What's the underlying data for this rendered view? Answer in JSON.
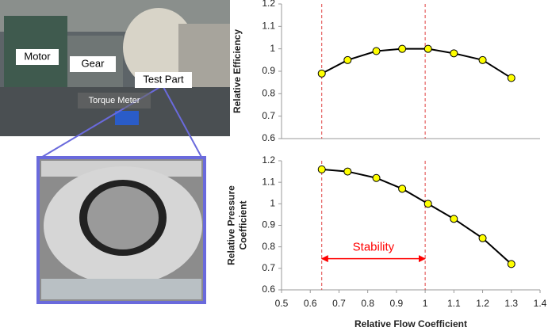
{
  "photo_labels": [
    "Motor",
    "Gear",
    "Test Part",
    "Torque Meter"
  ],
  "chart_data": [
    {
      "type": "line",
      "ylabel": [
        "Relative  Efficiency"
      ],
      "x": [
        0.64,
        0.73,
        0.83,
        0.92,
        1.01,
        1.1,
        1.2,
        1.3
      ],
      "series": [
        {
          "name": "Relative Efficiency",
          "color": "#ffff00",
          "values": [
            0.89,
            0.95,
            0.99,
            1.0,
            1.0,
            0.98,
            0.95,
            0.87
          ]
        }
      ],
      "xlim": [
        0.5,
        1.4
      ],
      "ylim": [
        0.6,
        1.2
      ],
      "yticks": [
        0.6,
        0.7,
        0.8,
        0.9,
        1,
        1.1,
        1.2
      ],
      "vlines": [
        0.64,
        1.0
      ],
      "grid": false
    },
    {
      "type": "line",
      "ylabel": [
        "Relative Pressure",
        "Coefficient"
      ],
      "xlabel": "Relative Flow Coefficient",
      "x": [
        0.64,
        0.73,
        0.83,
        0.92,
        1.01,
        1.1,
        1.2,
        1.3
      ],
      "series": [
        {
          "name": "Relative Pressure Coefficient",
          "color": "#ffff00",
          "values": [
            1.16,
            1.15,
            1.12,
            1.07,
            1.0,
            0.93,
            0.84,
            0.72
          ]
        }
      ],
      "xlim": [
        0.5,
        1.4
      ],
      "ylim": [
        0.6,
        1.2
      ],
      "xticks": [
        0.5,
        0.6,
        0.7,
        0.8,
        0.9,
        1,
        1.1,
        1.2,
        1.3,
        1.4
      ],
      "yticks": [
        0.6,
        0.7,
        0.8,
        0.9,
        1,
        1.1,
        1.2
      ],
      "vlines": [
        0.64,
        1.0
      ],
      "grid": false,
      "annotation": {
        "text": "Stability",
        "x": [
          0.64,
          1.0
        ],
        "y": 0.745,
        "color": "#ff0000"
      }
    }
  ]
}
